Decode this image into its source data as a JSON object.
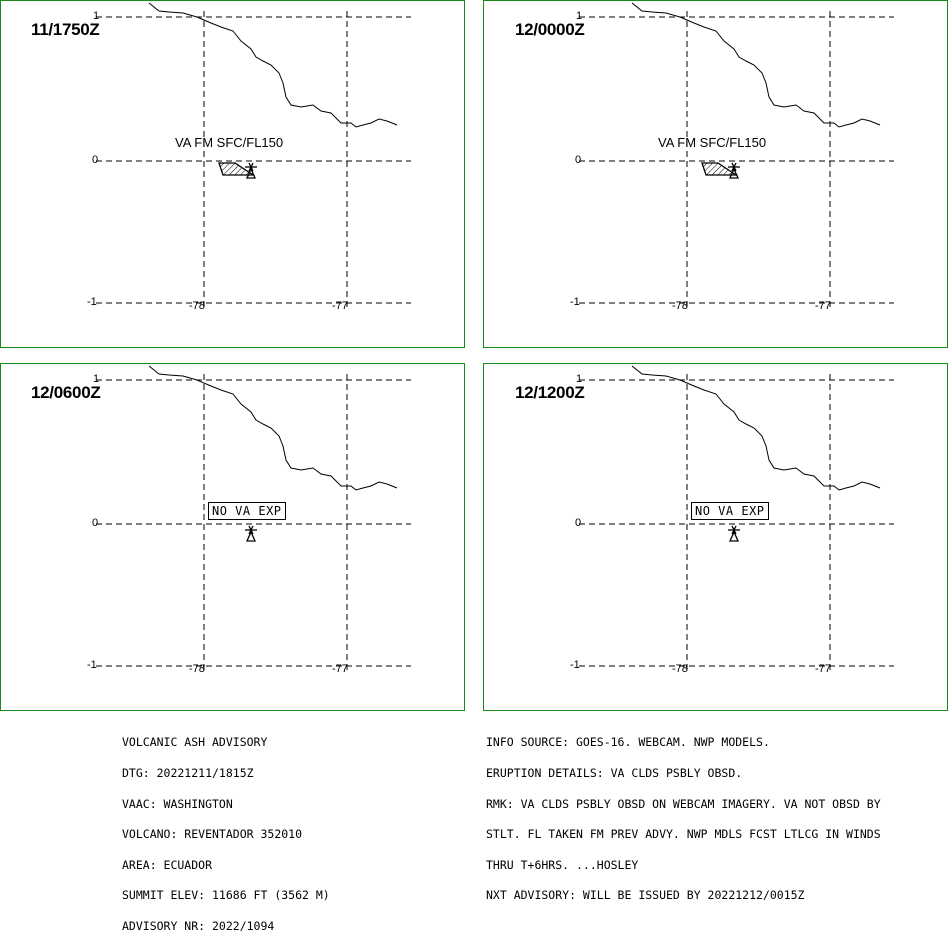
{
  "panels": [
    {
      "time": "11/1750Z",
      "state": "ash",
      "label": "VA FM SFC/FL150"
    },
    {
      "time": "12/0000Z",
      "state": "ash",
      "label": "VA FM SFC/FL150"
    },
    {
      "time": "12/0600Z",
      "state": "none",
      "label": "NO VA EXP"
    },
    {
      "time": "12/1200Z",
      "state": "none",
      "label": "NO VA EXP"
    }
  ],
  "axes": {
    "lat_ticks": [
      "1",
      "0",
      "-1"
    ],
    "lon_ticks": [
      "-78",
      "-77"
    ]
  },
  "advisory_left": [
    "VOLCANIC ASH ADVISORY",
    "DTG: 20221211/1815Z",
    "VAAC: WASHINGTON",
    "VOLCANO: REVENTADOR 352010",
    "AREA: ECUADOR",
    "SUMMIT ELEV: 11686 FT (3562 M)",
    "ADVISORY NR: 2022/1094"
  ],
  "advisory_right": [
    "INFO SOURCE: GOES-16. WEBCAM. NWP MODELS.",
    "ERUPTION DETAILS: VA CLDS PSBLY OBSD.",
    "RMK: VA CLDS PSBLY OBSD ON WEBCAM IMAGERY. VA NOT OBSD BY",
    "STLT. FL TAKEN FM PREV ADVY. NWP MDLS FCST LTLCG IN WINDS",
    "THRU T+6HRS. ...HOSLEY",
    "NXT ADVISORY: WILL BE ISSUED BY 20221212/0015Z"
  ],
  "colors": {
    "panel_border": "#1a8a1a",
    "ink": "#000000"
  }
}
